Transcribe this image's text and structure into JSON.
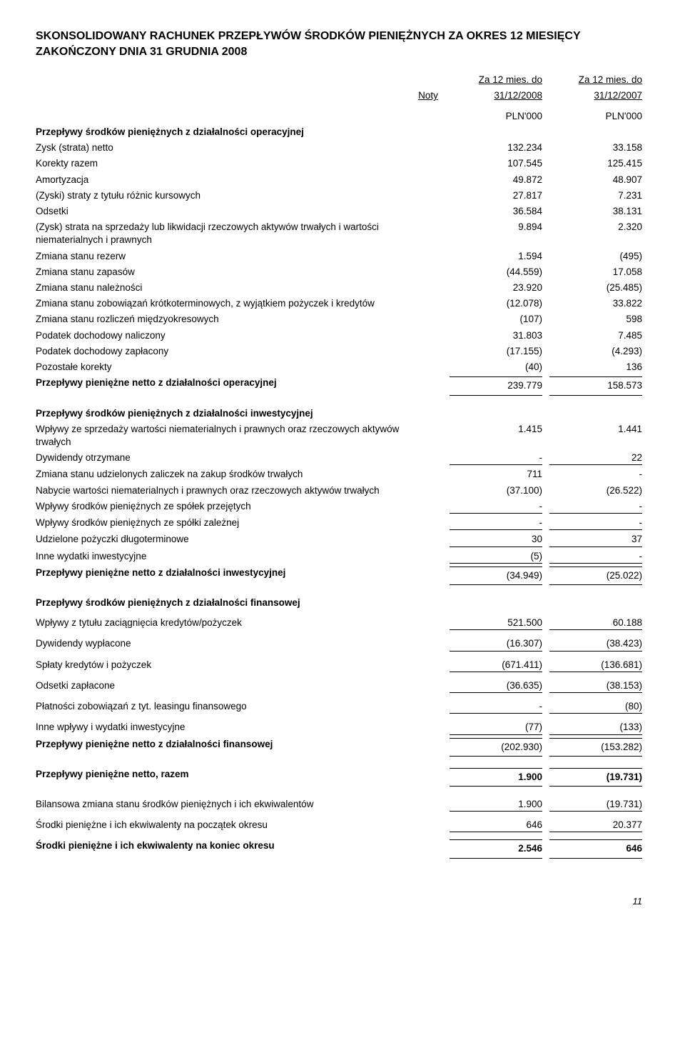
{
  "title": "SKONSOLIDOWANY RACHUNEK PRZEPŁYWÓW ŚRODKÓW PIENIĘŻNYCH ZA OKRES 12 MIESIĘCY ZAKOŃCZONY DNIA 31 GRUDNIA 2008",
  "header": {
    "noty": "Noty",
    "period_label": "Za 12 mies. do",
    "date1": "31/12/2008",
    "date2": "31/12/2007",
    "unit": "PLN'000"
  },
  "sections": {
    "op": {
      "heading": "Przepływy środków pieniężnych z działalności operacyjnej",
      "rows": [
        {
          "label": "Zysk (strata) netto",
          "v1": "132.234",
          "v2": "33.158"
        },
        {
          "label": "Korekty razem",
          "v1": "107.545",
          "v2": "125.415"
        },
        {
          "label": "Amortyzacja",
          "v1": "49.872",
          "v2": "48.907"
        },
        {
          "label": "(Zyski) straty z tytułu różnic kursowych",
          "v1": "27.817",
          "v2": "7.231"
        },
        {
          "label": "Odsetki",
          "v1": "36.584",
          "v2": "38.131"
        },
        {
          "label": "(Zysk) strata na sprzedaży lub likwidacji rzeczowych aktywów trwałych i wartości niematerialnych i prawnych",
          "v1": "9.894",
          "v2": "2.320"
        },
        {
          "label": "Zmiana stanu rezerw",
          "v1": "1.594",
          "v2": "(495)"
        },
        {
          "label": "Zmiana stanu zapasów",
          "v1": "(44.559)",
          "v2": "17.058"
        },
        {
          "label": "Zmiana stanu należności",
          "v1": "23.920",
          "v2": "(25.485)"
        },
        {
          "label": "Zmiana stanu zobowiązań krótkoterminowych, z wyjątkiem pożyczek i kredytów",
          "v1": "(12.078)",
          "v2": "33.822"
        },
        {
          "label": "Zmiana stanu rozliczeń międzyokresowych",
          "v1": "(107)",
          "v2": "598"
        },
        {
          "label": "Podatek dochodowy naliczony",
          "v1": "31.803",
          "v2": "7.485"
        },
        {
          "label": "Podatek dochodowy zapłacony",
          "v1": "(17.155)",
          "v2": "(4.293)"
        },
        {
          "label": "Pozostałe korekty",
          "v1": "(40)",
          "v2": "136"
        }
      ],
      "total": {
        "label": "Przepływy pieniężne netto z działalności operacyjnej",
        "v1": "239.779",
        "v2": "158.573"
      }
    },
    "inv": {
      "heading": "Przepływy środków pieniężnych z działalności inwestycyjnej",
      "rows": [
        {
          "label": "Wpływy ze sprzedaży wartości niematerialnych i prawnych oraz rzeczowych aktywów trwałych",
          "v1": "1.415",
          "v2": "1.441"
        },
        {
          "label": "Dywidendy otrzymane",
          "v1": "-",
          "v2": "22",
          "line": true
        },
        {
          "label": "Zmiana stanu udzielonych zaliczek na zakup środków trwałych",
          "v1": "711",
          "v2": "-"
        },
        {
          "label": "Nabycie wartości niematerialnych i prawnych oraz rzeczowych aktywów trwałych",
          "v1": "(37.100)",
          "v2": "(26.522)"
        },
        {
          "label": "Wpływy środków pieniężnych ze spółek przejętych",
          "v1": "-",
          "v2": "-",
          "line": true
        },
        {
          "label": "Wpływy środków pieniężnych ze spółki zależnej",
          "v1": "-",
          "v2": "-",
          "line": true
        },
        {
          "label": "Udzielone pożyczki długoterminowe",
          "v1": "30",
          "v2": "37",
          "line": true
        },
        {
          "label": "Inne wydatki inwestycyjne",
          "v1": "(5)",
          "v2": "-",
          "line": true
        }
      ],
      "total": {
        "label": "Przepływy pieniężne netto z działalności inwestycyjnej",
        "v1": "(34.949)",
        "v2": "(25.022)"
      }
    },
    "fin": {
      "heading": "Przepływy środków pieniężnych z działalności finansowej",
      "rows": [
        {
          "label": "Wpływy z tytułu zaciągnięcia kredytów/pożyczek",
          "v1": "521.500",
          "v2": "60.188"
        },
        {
          "label": "Dywidendy wypłacone",
          "v1": "(16.307)",
          "v2": "(38.423)"
        },
        {
          "label": "Spłaty kredytów i pożyczek",
          "v1": "(671.411)",
          "v2": "(136.681)"
        },
        {
          "label": "Odsetki zapłacone",
          "v1": "(36.635)",
          "v2": "(38.153)"
        },
        {
          "label": "Płatności zobowiązań z tyt. leasingu finansowego",
          "v1": "-",
          "v2": "(80)"
        },
        {
          "label": "Inne wpływy i wydatki inwestycyjne",
          "v1": "(77)",
          "v2": "(133)"
        }
      ],
      "total": {
        "label": "Przepływy pieniężne netto z działalności finansowej",
        "v1": "(202.930)",
        "v2": "(153.282)"
      }
    },
    "sum": {
      "net": {
        "label": "Przepływy pieniężne netto, razem",
        "v1": "1.900",
        "v2": "(19.731)"
      },
      "rows": [
        {
          "label": "Bilansowa zmiana stanu środków pieniężnych i ich ekwiwalentów",
          "v1": "1.900",
          "v2": "(19.731)"
        },
        {
          "label": "Środki pieniężne i ich ekwiwalenty na początek okresu",
          "v1": "646",
          "v2": "20.377"
        }
      ],
      "end": {
        "label": "Środki pieniężne i ich ekwiwalenty na koniec okresu",
        "v1": "2.546",
        "v2": "646"
      }
    }
  },
  "page_number": "11"
}
